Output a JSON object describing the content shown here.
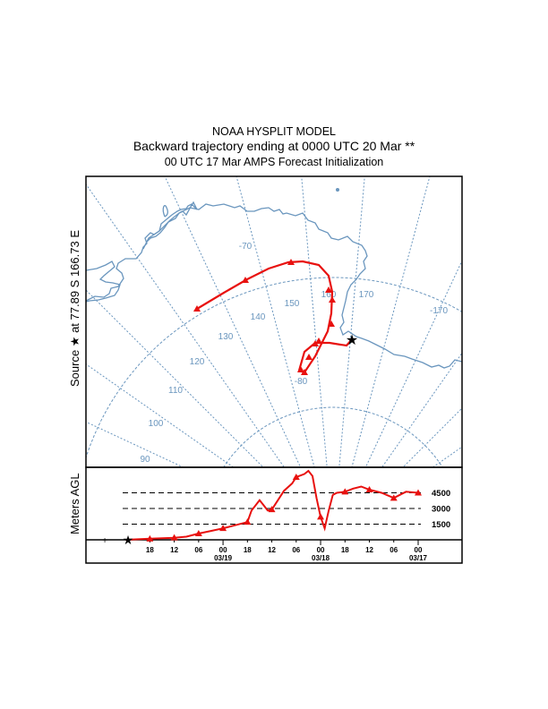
{
  "chart_data": [
    {
      "type": "line",
      "title": "NOAA HYSPLIT MODEL",
      "subtitle": "Backward trajectory ending at 0000 UTC 20 Mar **",
      "subtitle2": "00 UTC 17 Mar    AMPS  Forecast Initialization",
      "panel": "map",
      "ylabel": "Source ★ at  77.89 S  166.73 E",
      "source": {
        "lat": -77.89,
        "lon": 166.73,
        "marker": "star"
      },
      "meridian_labels": [
        "90",
        "100",
        "110",
        "120",
        "130",
        "140",
        "150",
        "160",
        "170",
        "-170"
      ],
      "parallel_labels": [
        "-70",
        "-80"
      ],
      "trajectory": {
        "name": "trajectory",
        "color": "#e8110f",
        "points_lonlat": [
          [
            166.73,
            -77.89
          ],
          [
            164.5,
            -77.6
          ],
          [
            160.5,
            -77.4
          ],
          [
            158.5,
            -77.8
          ],
          [
            157.5,
            -78.5
          ],
          [
            158.0,
            -78.0
          ],
          [
            161.0,
            -77.2
          ],
          [
            162.0,
            -76.5
          ],
          [
            162.5,
            -75.8
          ],
          [
            162.0,
            -75.0
          ],
          [
            161.0,
            -74.3
          ],
          [
            159.0,
            -73.7
          ],
          [
            155.0,
            -73.3
          ],
          [
            150.0,
            -73.4
          ],
          [
            145.0,
            -74.0
          ],
          [
            138.0,
            -75.0
          ]
        ]
      }
    },
    {
      "type": "line",
      "panel": "height",
      "ylabel": "Meters AGL",
      "xlabel": "",
      "ylim": [
        0,
        7000
      ],
      "y_ref_lines": [
        1500,
        3000,
        4500
      ],
      "y_ref_labels": [
        "1500",
        "3000",
        "4500"
      ],
      "x_tick_labels": [
        "18",
        "12",
        "06",
        "00",
        "18",
        "12",
        "06",
        "00",
        "18",
        "12",
        "06",
        "00"
      ],
      "x_tick_hours": [
        66,
        60,
        54,
        48,
        42,
        36,
        30,
        24,
        18,
        12,
        6,
        0
      ],
      "date_labels": [
        {
          "hour": 48,
          "label": "03/19"
        },
        {
          "hour": 24,
          "label": "03/18"
        },
        {
          "hour": 0,
          "label": "03/17"
        }
      ],
      "xlim_hours": [
        -7,
        78
      ],
      "series": [
        {
          "name": "trajectory height",
          "color": "#e8110f",
          "x_hours": [
            0,
            3,
            6,
            9,
            12,
            14,
            16,
            18,
            20,
            21,
            22,
            23,
            24,
            25,
            26,
            27,
            28,
            30,
            31,
            33,
            36,
            37,
            38,
            39,
            41,
            42,
            45,
            48,
            51,
            54,
            57,
            60,
            63,
            66,
            69,
            72
          ],
          "values": [
            4500,
            4600,
            4000,
            4500,
            4800,
            5100,
            4900,
            4600,
            4500,
            4300,
            2800,
            1100,
            2200,
            4000,
            6100,
            6600,
            6300,
            6000,
            5400,
            4700,
            2900,
            2800,
            3300,
            3800,
            2800,
            1700,
            1400,
            1100,
            850,
            600,
            300,
            200,
            150,
            100,
            50,
            0
          ],
          "marker_hours": [
            0,
            6,
            12,
            18,
            24,
            30,
            36,
            42,
            48,
            54,
            60,
            66
          ]
        }
      ]
    }
  ],
  "lower_panel": {
    "start_marker_label": "+"
  }
}
